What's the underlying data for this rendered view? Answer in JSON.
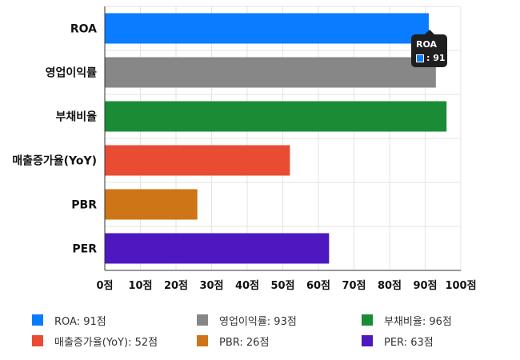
{
  "chart_data": {
    "type": "bar",
    "orientation": "horizontal",
    "categories": [
      "ROA",
      "영업이익률",
      "부채비율",
      "매출증가율(YoY)",
      "PBR",
      "PER"
    ],
    "values": [
      91,
      93,
      96,
      52,
      26,
      63
    ],
    "colors": [
      "#0a7cff",
      "#878787",
      "#1a8c36",
      "#ea4b33",
      "#cd7517",
      "#4e18c0"
    ],
    "xlim": [
      0,
      100
    ],
    "xticks": [
      "0점",
      "10점",
      "20점",
      "30점",
      "40점",
      "50점",
      "60점",
      "70점",
      "80점",
      "90점",
      "100점"
    ],
    "grid": true,
    "legend": {
      "placement": "bottom",
      "items": [
        "ROA: 91점",
        "영업이익률: 93점",
        "부채비율: 96점",
        "매출증가율(YoY): 52점",
        "PBR: 26점",
        "PER: 63점"
      ]
    },
    "tooltip": {
      "title": "ROA",
      "value": ": 91",
      "color": "#0a7cff"
    }
  }
}
